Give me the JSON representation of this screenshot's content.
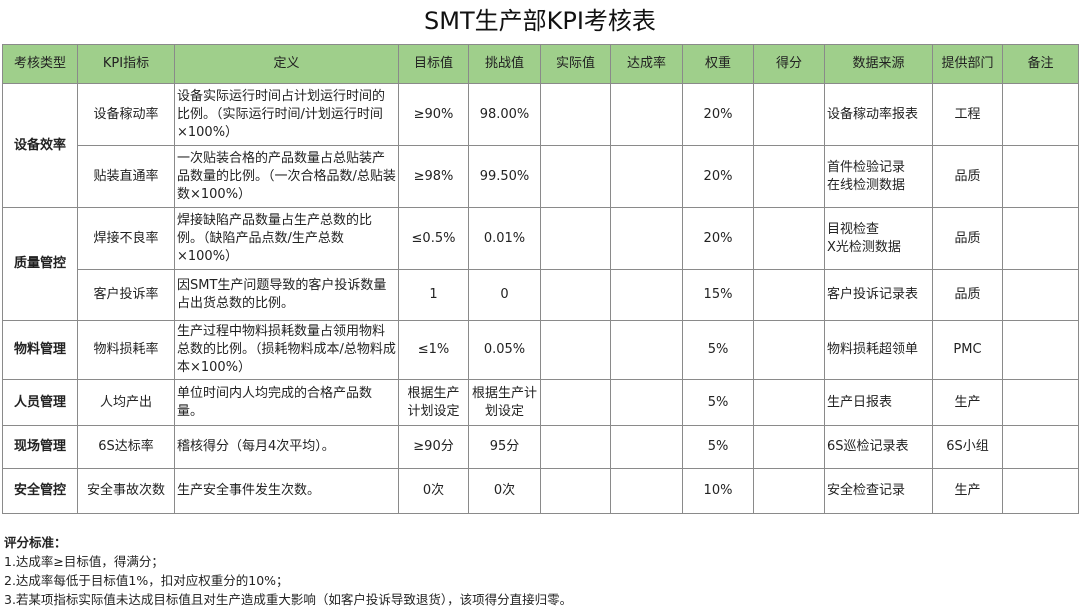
{
  "title": "SMT生产部KPI考核表",
  "headers": [
    "考核类型",
    "KPI指标",
    "定义",
    "目标值",
    "挑战值",
    "实际值",
    "达成率",
    "权重",
    "得分",
    "数据来源",
    "提供部门",
    "备注"
  ],
  "categories": [
    "设备效率",
    "质量管控",
    "物料管理",
    "人员管理",
    "现场管理",
    "安全管控"
  ],
  "rows": [
    {
      "kpi": "设备稼动率",
      "definition": "设备实际运行时间占计划运行时间的比例。（实际运行时间/计划运行时间×100%）",
      "target": "≥90%",
      "challenge": "98.00%",
      "actual": "",
      "rate": "",
      "weight": "20%",
      "score": "",
      "source": "设备稼动率报表",
      "dept": "工程",
      "remark": ""
    },
    {
      "kpi": "贴装直通率",
      "definition": "一次贴装合格的产品数量占总贴装产品数量的比例。（一次合格品数/总贴装数×100%）",
      "target": "≥98%",
      "challenge": "99.50%",
      "actual": "",
      "rate": "",
      "weight": "20%",
      "score": "",
      "source": "首件检验记录\n在线检测数据",
      "dept": "品质",
      "remark": ""
    },
    {
      "kpi": "焊接不良率",
      "definition": "焊接缺陷产品数量占生产总数的比例。（缺陷产品点数/生产总数×100%）",
      "target": "≤0.5%",
      "challenge": "0.01%",
      "actual": "",
      "rate": "",
      "weight": "20%",
      "score": "",
      "source": "目视检查\nX光检测数据",
      "dept": "品质",
      "remark": ""
    },
    {
      "kpi": "客户投诉率",
      "definition": "因SMT生产问题导致的客户投诉数量占出货总数的比例。",
      "target": "1",
      "challenge": "0",
      "actual": "",
      "rate": "",
      "weight": "15%",
      "score": "",
      "source": "客户投诉记录表",
      "dept": "品质",
      "remark": ""
    },
    {
      "kpi": "物料损耗率",
      "definition": "生产过程中物料损耗数量占领用物料总数的比例。（损耗物料成本/总物料成本×100%）",
      "target": "≤1%",
      "challenge": "0.05%",
      "actual": "",
      "rate": "",
      "weight": "5%",
      "score": "",
      "source": "物料损耗超领单",
      "dept": "PMC",
      "remark": ""
    },
    {
      "kpi": "人均产出",
      "definition": "单位时间内人均完成的合格产品数量。",
      "target": "根据生产计划设定",
      "challenge": "根据生产计划设定",
      "actual": "",
      "rate": "",
      "weight": "5%",
      "score": "",
      "source": "生产日报表",
      "dept": "生产",
      "remark": ""
    },
    {
      "kpi": "6S达标率",
      "definition": "稽核得分（每月4次平均）。",
      "target": "≥90分",
      "challenge": "95分",
      "actual": "",
      "rate": "",
      "weight": "5%",
      "score": "",
      "source": "6S巡检记录表",
      "dept": "6S小组",
      "remark": ""
    },
    {
      "kpi": "安全事故次数",
      "definition": "生产安全事件发生次数。",
      "target": "0次",
      "challenge": "0次",
      "actual": "",
      "rate": "",
      "weight": "10%",
      "score": "",
      "source": "安全检查记录",
      "dept": "生产",
      "remark": ""
    }
  ],
  "notes": {
    "title": "评分标准：",
    "items": [
      "1.达成率≥目标值，得满分；",
      "2.达成率每低于目标值1%，扣对应权重分的10%；",
      "3.若某项指标实际值未达成目标值且对生产造成重大影响（如客户投诉导致退货），该项得分直接归零。"
    ]
  }
}
